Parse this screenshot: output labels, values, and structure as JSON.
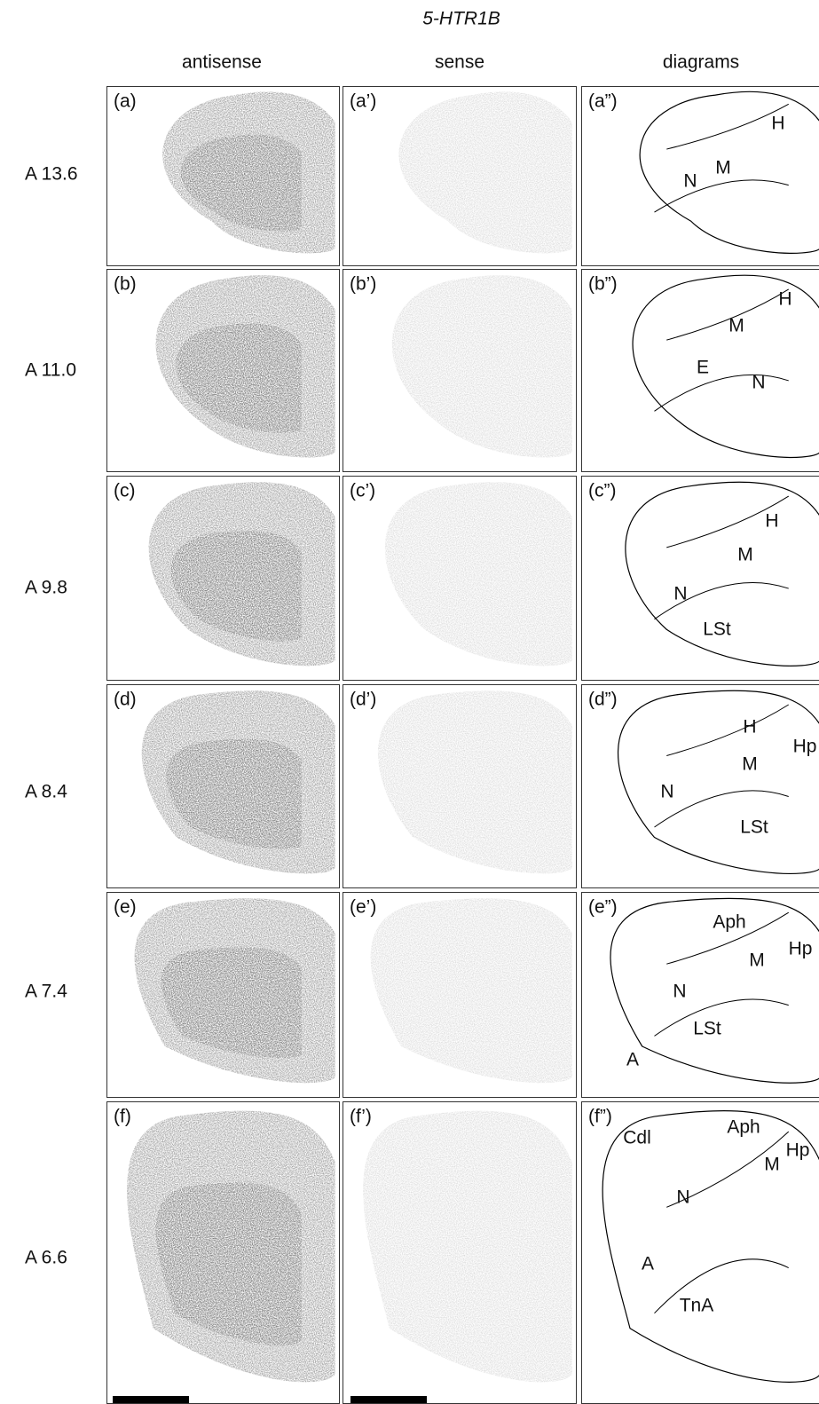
{
  "title": "5-HTR1B",
  "columns": [
    "antisense",
    "sense",
    "diagrams"
  ],
  "rows": [
    {
      "level": "A 13.6",
      "panels": [
        "(a)",
        "(a’)",
        "(a”)"
      ],
      "regions": [
        "H",
        "M",
        "N"
      ]
    },
    {
      "level": "A 11.0",
      "panels": [
        "(b)",
        "(b’)",
        "(b”)"
      ],
      "regions": [
        "H",
        "M",
        "E",
        "N"
      ]
    },
    {
      "level": "A 9.8",
      "panels": [
        "(c)",
        "(c’)",
        "(c”)"
      ],
      "regions": [
        "H",
        "M",
        "N",
        "LSt"
      ]
    },
    {
      "level": "A 8.4",
      "panels": [
        "(d)",
        "(d’)",
        "(d”)"
      ],
      "regions": [
        "H",
        "Hp",
        "M",
        "N",
        "LSt"
      ]
    },
    {
      "level": "A 7.4",
      "panels": [
        "(e)",
        "(e’)",
        "(e”)"
      ],
      "regions": [
        "Aph",
        "Hp",
        "M",
        "N",
        "LSt",
        "A"
      ]
    },
    {
      "level": "A 6.6",
      "panels": [
        "(f)",
        "(f’)",
        "(f”)"
      ],
      "regions": [
        "Cdl",
        "Aph",
        "Hp",
        "M",
        "N",
        "A",
        "TnA"
      ]
    }
  ]
}
